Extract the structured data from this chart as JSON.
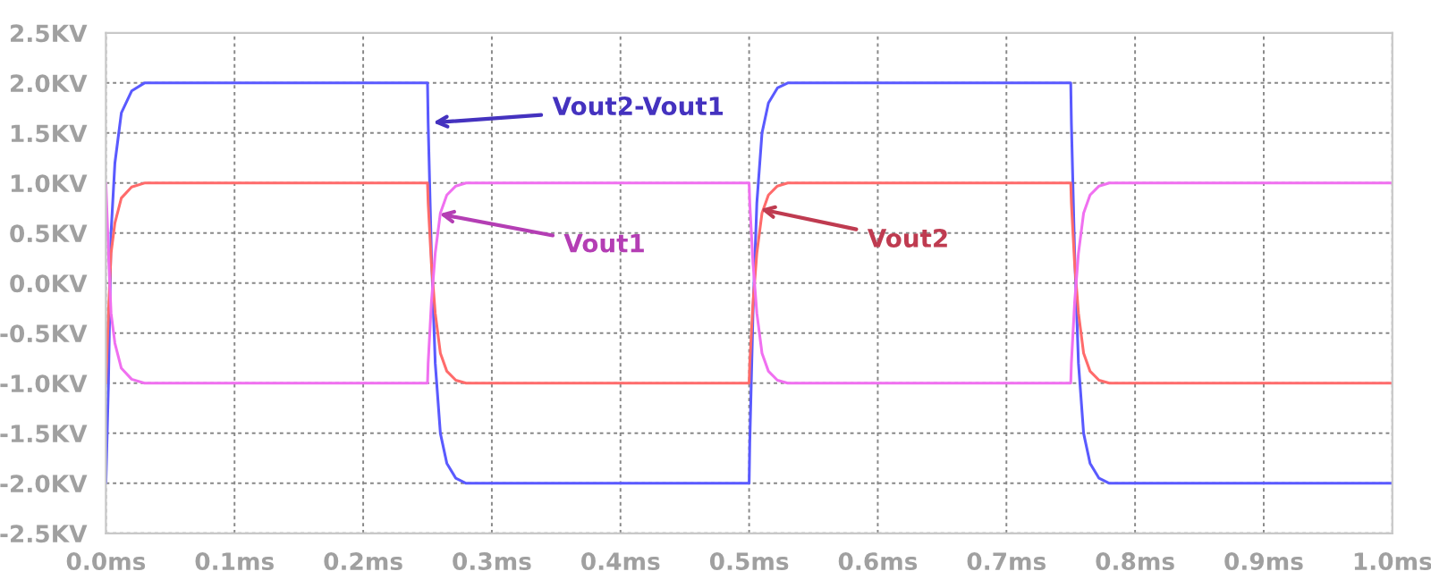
{
  "chart_data": {
    "type": "line",
    "x": [
      0,
      0.002,
      0.004,
      0.007,
      0.012,
      0.02,
      0.03,
      0.25,
      0.2505,
      0.253,
      0.256,
      0.26,
      0.265,
      0.272,
      0.28,
      0.5,
      0.5005,
      0.503,
      0.506,
      0.51,
      0.515,
      0.522,
      0.53,
      0.75,
      0.7505,
      0.753,
      0.756,
      0.76,
      0.765,
      0.772,
      0.78,
      1.0
    ],
    "series": [
      {
        "color": "#5a5aff",
        "values": [
          -2,
          -1,
          0.5,
          1.2,
          1.7,
          1.92,
          2,
          2,
          1.6,
          0.3,
          -0.8,
          -1.5,
          -1.8,
          -1.95,
          -2,
          -2,
          -1.6,
          -0.3,
          0.8,
          1.5,
          1.8,
          1.95,
          2,
          2,
          1.6,
          0.3,
          -0.8,
          -1.5,
          -1.8,
          -1.95,
          -2,
          -2
        ]
      },
      {
        "color": "#ff6b6b",
        "values": [
          -1,
          -0.3,
          0.3,
          0.6,
          0.85,
          0.96,
          1,
          1,
          0.8,
          0.2,
          -0.3,
          -0.7,
          -0.88,
          -0.97,
          -1,
          -1,
          -0.8,
          -0.2,
          0.3,
          0.7,
          0.88,
          0.97,
          1,
          1,
          0.8,
          0.2,
          -0.3,
          -0.7,
          -0.88,
          -0.97,
          -1,
          -1
        ]
      },
      {
        "color": "#f070f0",
        "values": [
          1,
          0.3,
          -0.3,
          -0.6,
          -0.85,
          -0.96,
          -1,
          -1,
          -0.8,
          -0.2,
          0.3,
          0.7,
          0.88,
          0.97,
          1,
          1,
          0.8,
          0.2,
          -0.3,
          -0.7,
          -0.88,
          -0.97,
          -1,
          -1,
          -0.8,
          -0.2,
          0.3,
          0.7,
          0.88,
          0.97,
          1,
          1
        ]
      }
    ],
    "annotations": [
      {
        "text": "Vout2-Vout1",
        "x": 0.2505,
        "y": 1.6
      },
      {
        "text": "Vout2",
        "x": 0.505,
        "y": 0.75
      },
      {
        "text": "Vout1",
        "x": 0.2555,
        "y": 0.7
      }
    ],
    "xlim": [
      0,
      1.0
    ],
    "xticks": [
      {
        "value": 0,
        "label": "0.0ms"
      },
      {
        "value": 0.1,
        "label": "0.1ms"
      },
      {
        "value": 0.2,
        "label": "0.2ms"
      },
      {
        "value": 0.3,
        "label": "0.3ms"
      },
      {
        "value": 0.4,
        "label": "0.4ms"
      },
      {
        "value": 0.5,
        "label": "0.5ms"
      },
      {
        "value": 0.6,
        "label": "0.6ms"
      },
      {
        "value": 0.7,
        "label": "0.7ms"
      },
      {
        "value": 0.8,
        "label": "0.8ms"
      },
      {
        "value": 0.9,
        "label": "0.9ms"
      },
      {
        "value": 1.0,
        "label": "1.0ms"
      }
    ],
    "ylim": [
      -2.5,
      2.5
    ],
    "yticks": [
      {
        "value": -2.5,
        "label": "-2.5KV"
      },
      {
        "value": -2.0,
        "label": "-2.0KV"
      },
      {
        "value": -1.5,
        "label": "-1.5KV"
      },
      {
        "value": -1.0,
        "label": "-1.0KV"
      },
      {
        "value": -0.5,
        "label": "-0.5KV"
      },
      {
        "value": 0.0,
        "label": "0.0KV"
      },
      {
        "value": 0.5,
        "label": "0.5KV"
      },
      {
        "value": 1.0,
        "label": "1.0KV"
      },
      {
        "value": 1.5,
        "label": "1.5KV"
      },
      {
        "value": 2.0,
        "label": "2.0KV"
      },
      {
        "value": 2.5,
        "label": "2.5KV"
      }
    ],
    "grid": true,
    "legend": false
  }
}
